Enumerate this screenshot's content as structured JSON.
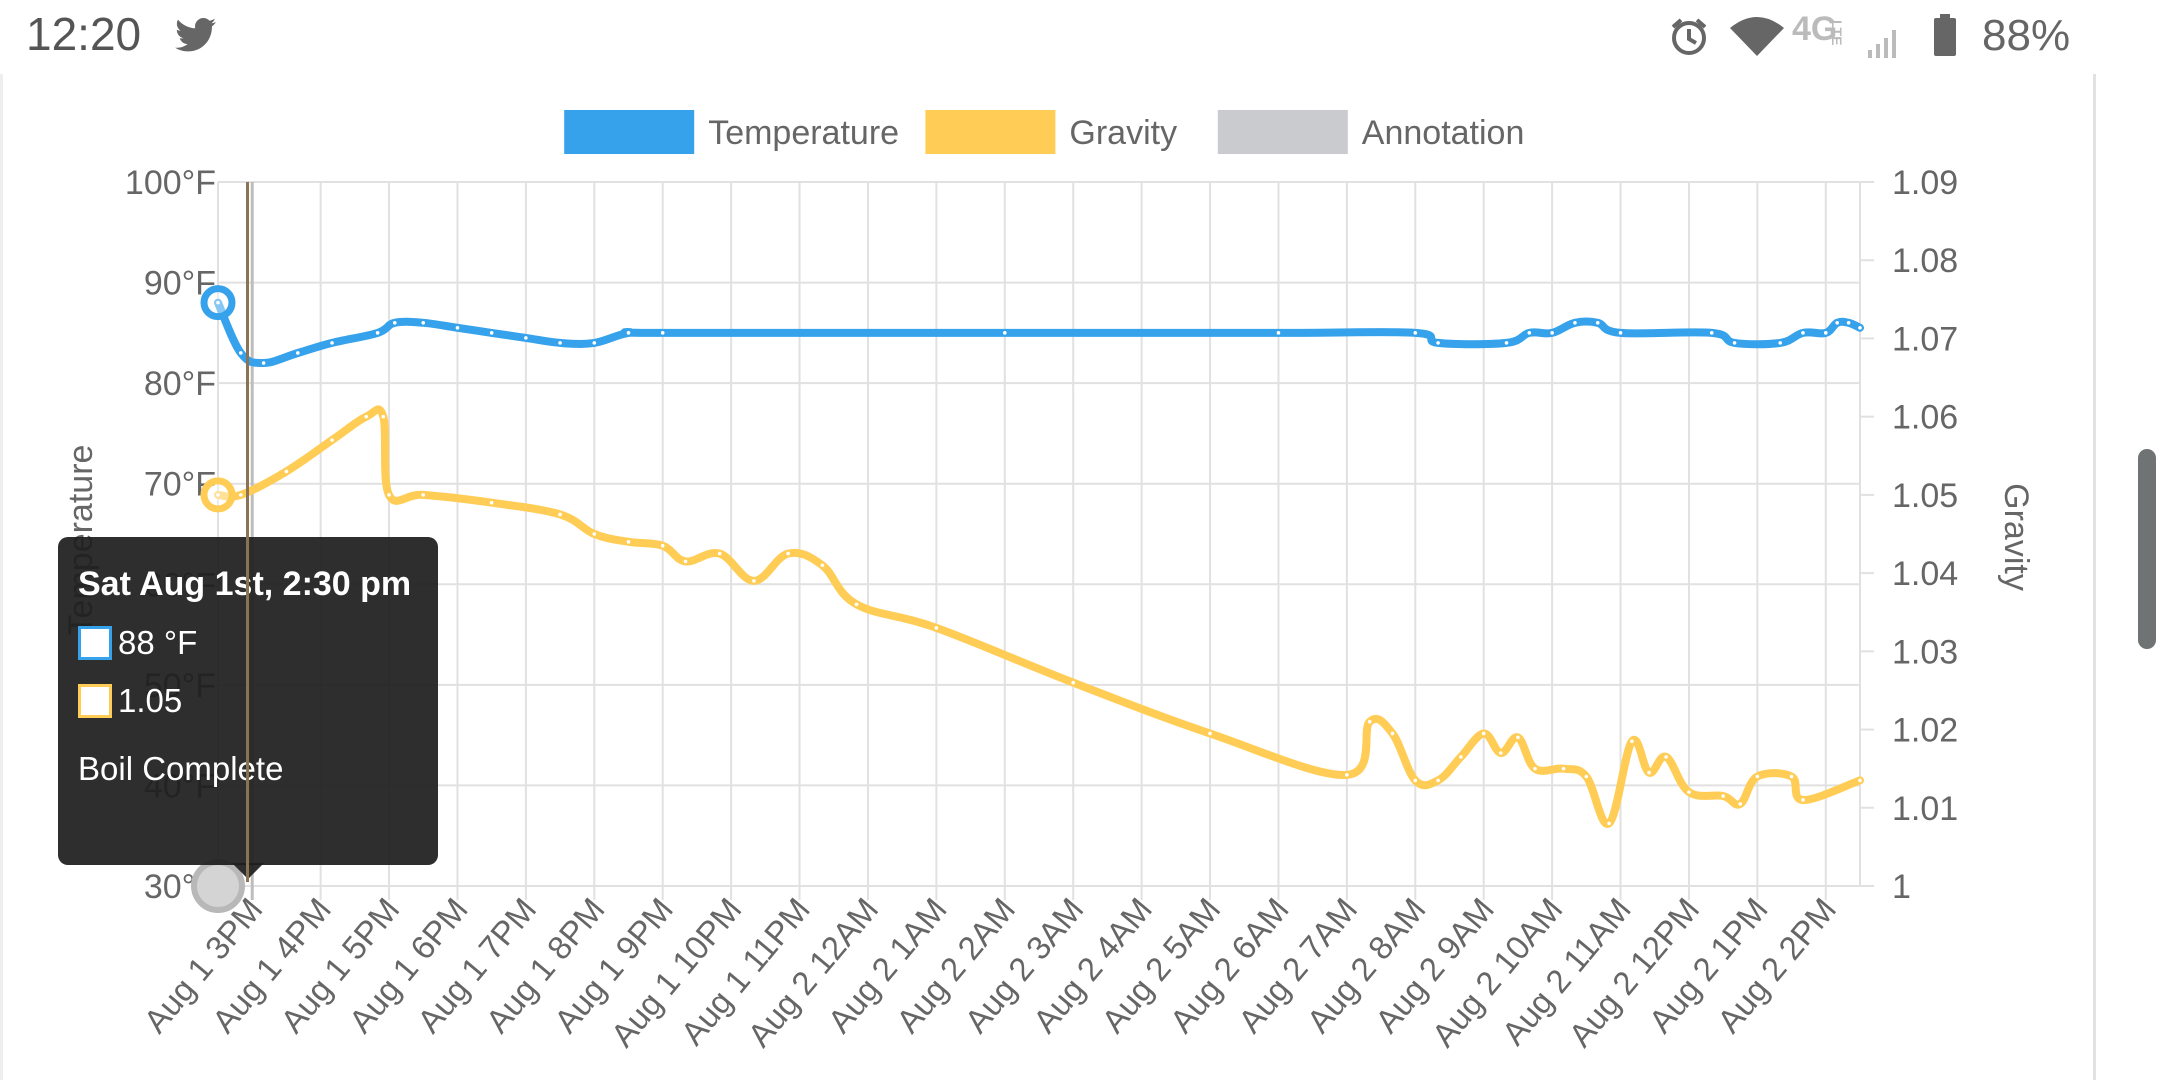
{
  "status_bar": {
    "time": "12:20",
    "app_icon": "twitter-icon",
    "icons": [
      "alarm-icon",
      "wifi-icon",
      "4g-lte-icon",
      "signal-icon",
      "battery-icon"
    ],
    "network": "4G",
    "network_sub": "LTE",
    "battery": "88%"
  },
  "tooltip": {
    "title": "Sat Aug 1st, 2:30 pm",
    "temperature_value": "88 °F",
    "gravity_value": "1.05",
    "note": "Boil Complete"
  },
  "chart_data": {
    "type": "line",
    "legend": {
      "placement": "top-center",
      "items": [
        {
          "label": "Temperature",
          "color": "#36a2eb"
        },
        {
          "label": "Gravity",
          "color": "#ffcd56"
        },
        {
          "label": "Annotation",
          "color": "#c9cbcf"
        }
      ]
    },
    "x_ticks": [
      "Aug 1 3PM",
      "Aug 1 4PM",
      "Aug 1 5PM",
      "Aug 1 6PM",
      "Aug 1 7PM",
      "Aug 1 8PM",
      "Aug 1 9PM",
      "Aug 1 10PM",
      "Aug 1 11PM",
      "Aug 2 12AM",
      "Aug 2 1AM",
      "Aug 2 2AM",
      "Aug 2 3AM",
      "Aug 2 4AM",
      "Aug 2 5AM",
      "Aug 2 6AM",
      "Aug 2 7AM",
      "Aug 2 8AM",
      "Aug 2 9AM",
      "Aug 2 10AM",
      "Aug 2 11AM",
      "Aug 2 12PM",
      "Aug 2 1PM",
      "Aug 2 2PM"
    ],
    "x_range": [
      "Aug 1 2:30PM",
      "Aug 2 2:30PM"
    ],
    "y_left": {
      "label": "Temperature",
      "ticks": [
        "100°F",
        "90°F",
        "80°F",
        "70°F",
        "60°F",
        "50°F",
        "40°F",
        "30°F"
      ],
      "range": [
        30,
        100
      ]
    },
    "y_right": {
      "label": "Gravity",
      "ticks": [
        "1.09",
        "1.08",
        "1.07",
        "1.06",
        "1.05",
        "1.04",
        "1.03",
        "1.02",
        "1.01",
        "1"
      ],
      "range": [
        1.0,
        1.09
      ]
    },
    "grid": true,
    "series": [
      {
        "name": "Temperature",
        "axis": "left",
        "color": "#36a2eb",
        "points": [
          [
            "Aug 1 2:30PM",
            88
          ],
          [
            "Aug 1 2:50PM",
            83
          ],
          [
            "Aug 1 3:10PM",
            82
          ],
          [
            "Aug 1 3:40PM",
            83
          ],
          [
            "Aug 1 4:10PM",
            84
          ],
          [
            "Aug 1 4:50PM",
            85
          ],
          [
            "Aug 1 5:05PM",
            86
          ],
          [
            "Aug 1 5:30PM",
            86
          ],
          [
            "Aug 1 6:00PM",
            85.5
          ],
          [
            "Aug 1 6:30PM",
            85
          ],
          [
            "Aug 1 7:00PM",
            84.5
          ],
          [
            "Aug 1 7:30PM",
            84
          ],
          [
            "Aug 1 8:00PM",
            84
          ],
          [
            "Aug 1 8:30PM",
            85
          ],
          [
            "Aug 1 9:00PM",
            85
          ],
          [
            "Aug 2 2:00AM",
            85
          ],
          [
            "Aug 2 6:00AM",
            85
          ],
          [
            "Aug 2 8:00AM",
            85
          ],
          [
            "Aug 2 8:20AM",
            84
          ],
          [
            "Aug 2 9:20AM",
            84
          ],
          [
            "Aug 2 9:40AM",
            85
          ],
          [
            "Aug 2 10:00AM",
            85
          ],
          [
            "Aug 2 10:20AM",
            86
          ],
          [
            "Aug 2 10:40AM",
            86
          ],
          [
            "Aug 2 11:00AM",
            85
          ],
          [
            "Aug 2 12:20PM",
            85
          ],
          [
            "Aug 2 12:40PM",
            84
          ],
          [
            "Aug 2 1:20PM",
            84
          ],
          [
            "Aug 2 1:40PM",
            85
          ],
          [
            "Aug 2 2:00PM",
            85
          ],
          [
            "Aug 2 2:10PM",
            86
          ],
          [
            "Aug 2 2:20PM",
            86
          ],
          [
            "Aug 2 2:30PM",
            85.5
          ]
        ]
      },
      {
        "name": "Gravity",
        "axis": "right",
        "color": "#ffcd56",
        "points": [
          [
            "Aug 1 2:30PM",
            1.05
          ],
          [
            "Aug 1 2:50PM",
            1.05
          ],
          [
            "Aug 1 3:30PM",
            1.053
          ],
          [
            "Aug 1 4:10PM",
            1.057
          ],
          [
            "Aug 1 4:40PM",
            1.06
          ],
          [
            "Aug 1 4:55PM",
            1.06
          ],
          [
            "Aug 1 5:00PM",
            1.05
          ],
          [
            "Aug 1 5:30PM",
            1.05
          ],
          [
            "Aug 1 6:30PM",
            1.049
          ],
          [
            "Aug 1 7:30PM",
            1.0475
          ],
          [
            "Aug 1 8:00PM",
            1.045
          ],
          [
            "Aug 1 8:30PM",
            1.044
          ],
          [
            "Aug 1 9:00PM",
            1.0435
          ],
          [
            "Aug 1 9:20PM",
            1.0415
          ],
          [
            "Aug 1 9:50PM",
            1.0425
          ],
          [
            "Aug 1 10:20PM",
            1.039
          ],
          [
            "Aug 1 10:50PM",
            1.0425
          ],
          [
            "Aug 1 11:20PM",
            1.041
          ],
          [
            "Aug 1 11:50PM",
            1.036
          ],
          [
            "Aug 2 1:00AM",
            1.033
          ],
          [
            "Aug 2 3:00AM",
            1.026
          ],
          [
            "Aug 2 5:00AM",
            1.0195
          ],
          [
            "Aug 2 7:00AM",
            1.0142
          ],
          [
            "Aug 2 7:20AM",
            1.021
          ],
          [
            "Aug 2 7:40AM",
            1.0195
          ],
          [
            "Aug 2 8:00AM",
            1.0135
          ],
          [
            "Aug 2 8:20AM",
            1.0135
          ],
          [
            "Aug 2 8:40AM",
            1.0165
          ],
          [
            "Aug 2 9:00AM",
            1.0195
          ],
          [
            "Aug 2 9:15AM",
            1.017
          ],
          [
            "Aug 2 9:30AM",
            1.019
          ],
          [
            "Aug 2 9:45AM",
            1.015
          ],
          [
            "Aug 2 10:10AM",
            1.015
          ],
          [
            "Aug 2 10:30AM",
            1.014
          ],
          [
            "Aug 2 10:50AM",
            1.008
          ],
          [
            "Aug 2 11:10AM",
            1.0185
          ],
          [
            "Aug 2 11:25AM",
            1.0145
          ],
          [
            "Aug 2 11:40AM",
            1.0165
          ],
          [
            "Aug 2 12:00PM",
            1.012
          ],
          [
            "Aug 2 12:30PM",
            1.0115
          ],
          [
            "Aug 2 12:45PM",
            1.0105
          ],
          [
            "Aug 2 1:00PM",
            1.014
          ],
          [
            "Aug 2 1:30PM",
            1.014
          ],
          [
            "Aug 2 1:40PM",
            1.011
          ],
          [
            "Aug 2 2:30PM",
            1.0135
          ]
        ]
      },
      {
        "name": "Annotation",
        "axis": "left",
        "color": "#c9cbcf",
        "points": [
          [
            "Aug 1 2:30PM",
            30
          ]
        ]
      }
    ]
  }
}
